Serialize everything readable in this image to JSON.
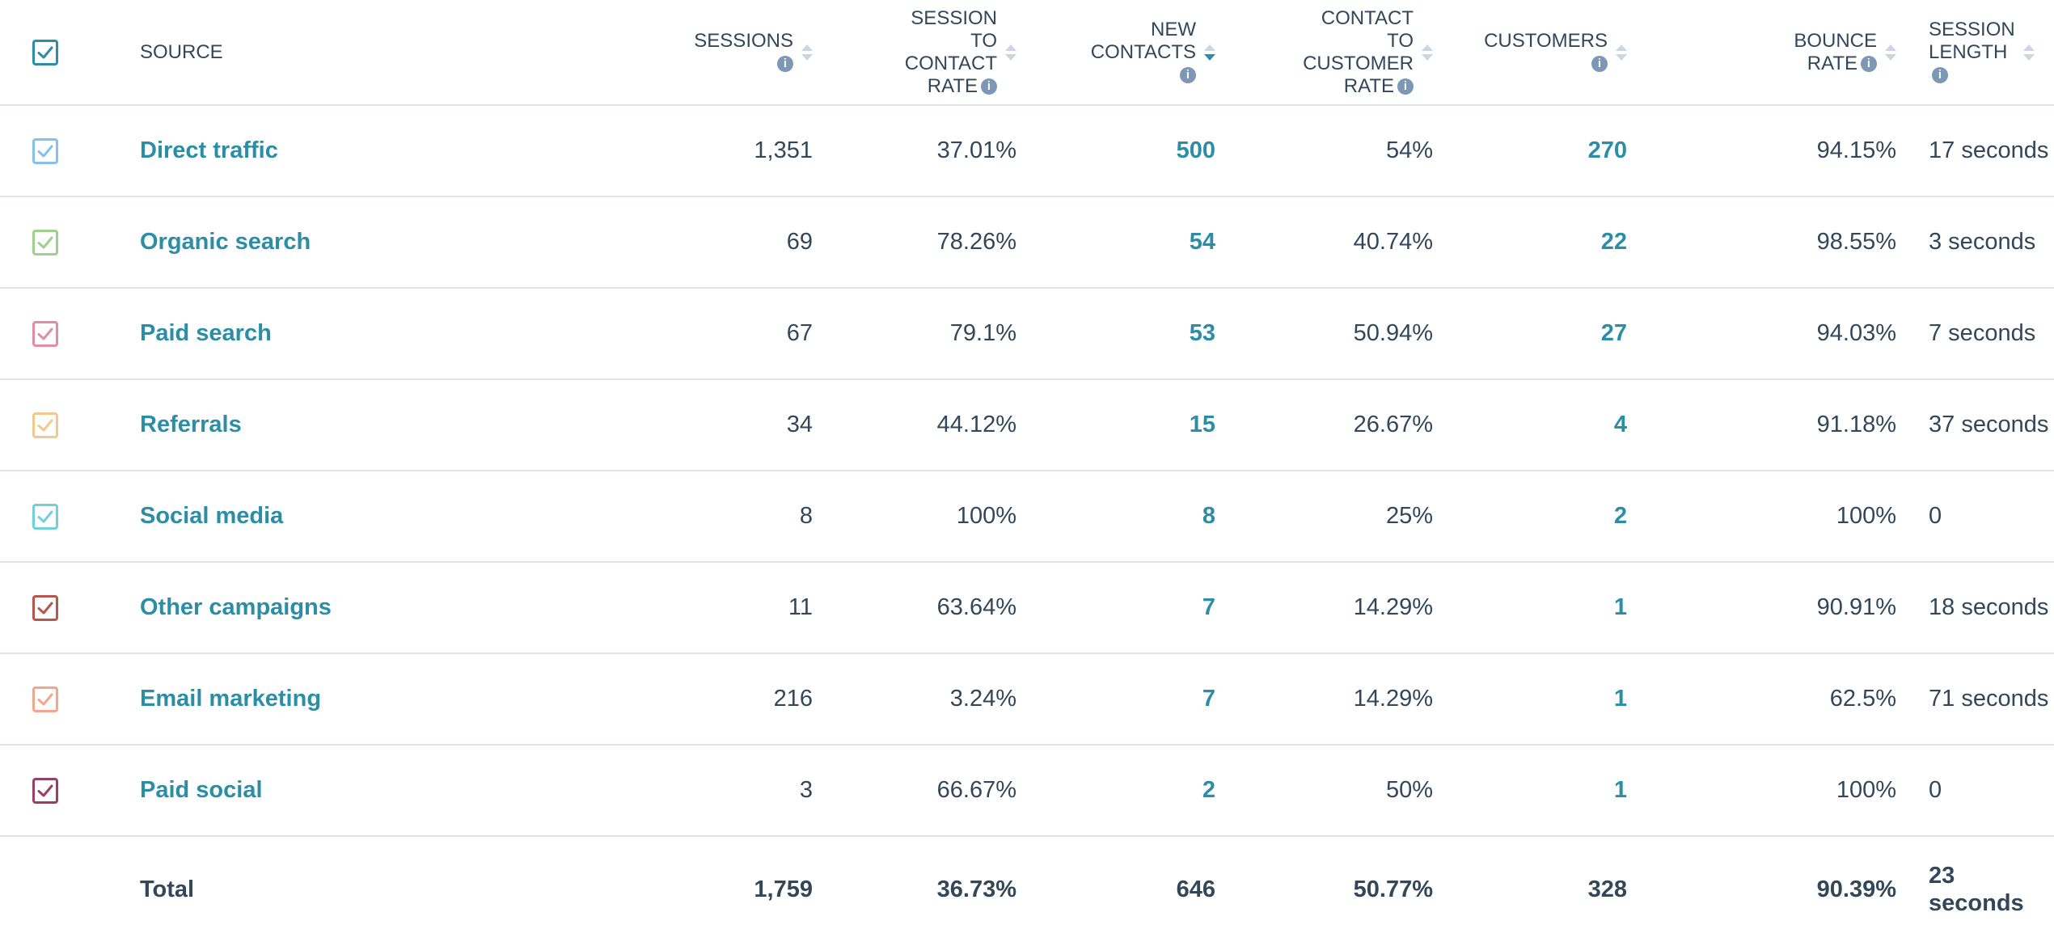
{
  "header": {
    "source": "SOURCE",
    "sessions": [
      "SESSIONS"
    ],
    "session_to_contact": [
      "SESSION",
      "TO",
      "CONTACT",
      "RATE"
    ],
    "new_contacts": [
      "NEW",
      "CONTACTS"
    ],
    "contact_to_customer": [
      "CONTACT",
      "TO",
      "CUSTOMER",
      "RATE"
    ],
    "customers": [
      "CUSTOMERS"
    ],
    "bounce_rate": [
      "BOUNCE",
      "RATE"
    ],
    "session_length": [
      "SESSION",
      "LENGTH"
    ],
    "info_glyph": "i"
  },
  "colors": {
    "select_all": "#2b8ea6",
    "link": "#2b8ea6",
    "border": "#dfe3eb",
    "text": "#33475b"
  },
  "rows": [
    {
      "source": "Direct traffic",
      "sessions": "1,351",
      "s2c": "37.01%",
      "new_contacts": "500",
      "c2c": "54%",
      "customers": "270",
      "bounce": "94.15%",
      "length": "17 seconds",
      "color": "#86bff2"
    },
    {
      "source": "Organic search",
      "sessions": "69",
      "s2c": "78.26%",
      "new_contacts": "54",
      "c2c": "40.74%",
      "customers": "22",
      "bounce": "98.55%",
      "length": "3 seconds",
      "color": "#9fd08f"
    },
    {
      "source": "Paid search",
      "sessions": "67",
      "s2c": "79.1%",
      "new_contacts": "53",
      "c2c": "50.94%",
      "customers": "27",
      "bounce": "94.03%",
      "length": "7 seconds",
      "color": "#e38ca3"
    },
    {
      "source": "Referrals",
      "sessions": "34",
      "s2c": "44.12%",
      "new_contacts": "15",
      "c2c": "26.67%",
      "customers": "4",
      "bounce": "91.18%",
      "length": "37 seconds",
      "color": "#f2c98c"
    },
    {
      "source": "Social media",
      "sessions": "8",
      "s2c": "100%",
      "new_contacts": "8",
      "c2c": "25%",
      "customers": "2",
      "bounce": "100%",
      "length": "0",
      "color": "#6fd1dc"
    },
    {
      "source": "Other campaigns",
      "sessions": "11",
      "s2c": "63.64%",
      "new_contacts": "7",
      "c2c": "14.29%",
      "customers": "1",
      "bounce": "90.91%",
      "length": "18 seconds",
      "color": "#b5574b"
    },
    {
      "source": "Email marketing",
      "sessions": "216",
      "s2c": "3.24%",
      "new_contacts": "7",
      "c2c": "14.29%",
      "customers": "1",
      "bounce": "62.5%",
      "length": "71 seconds",
      "color": "#f4a58c"
    },
    {
      "source": "Paid social",
      "sessions": "3",
      "s2c": "66.67%",
      "new_contacts": "2",
      "c2c": "50%",
      "customers": "1",
      "bounce": "100%",
      "length": "0",
      "color": "#9b3e63"
    }
  ],
  "total": {
    "label": "Total",
    "sessions": "1,759",
    "s2c": "36.73%",
    "new_contacts": "646",
    "c2c": "50.77%",
    "customers": "328",
    "bounce": "90.39%",
    "length": [
      "23",
      "seconds"
    ]
  }
}
